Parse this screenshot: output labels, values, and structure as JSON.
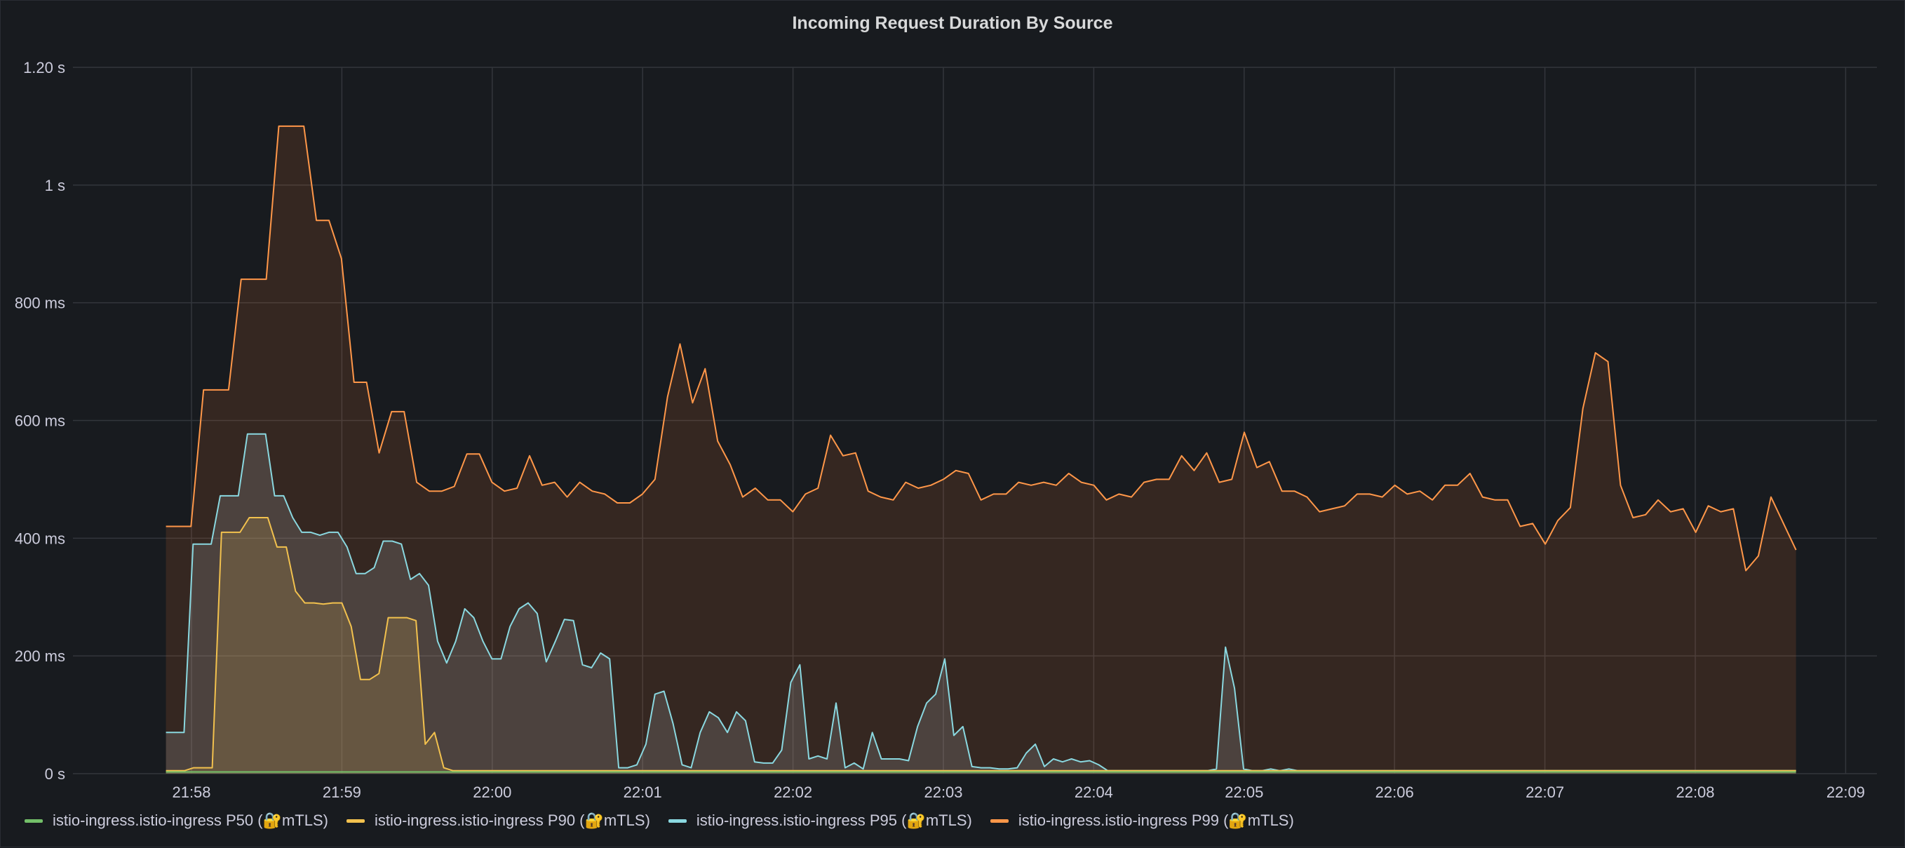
{
  "panel": {
    "title": "Incoming Request Duration By Source"
  },
  "colors": {
    "background": "#181b1f",
    "grid": "#33363c",
    "text": "#ccccdc"
  },
  "chart_data": {
    "type": "area",
    "title": "Incoming Request Duration By Source",
    "xlabel": "",
    "ylabel": "",
    "x_ticks": [
      "21:58",
      "21:59",
      "22:00",
      "22:01",
      "22:02",
      "22:03",
      "22:04",
      "22:05",
      "22:06",
      "22:07",
      "22:08",
      "22:09"
    ],
    "y_ticks": [
      {
        "value": 0,
        "label": "0 s"
      },
      {
        "value": 200,
        "label": "200 ms"
      },
      {
        "value": 400,
        "label": "400 ms"
      },
      {
        "value": 600,
        "label": "600 ms"
      },
      {
        "value": 800,
        "label": "800 ms"
      },
      {
        "value": 1000,
        "label": "1 s"
      },
      {
        "value": 1200,
        "label": "1.20 s"
      }
    ],
    "ylim": [
      0,
      1200
    ],
    "xlim_minutes": [
      -0.19,
      11.09
    ],
    "x_minutes_start": -0.17,
    "x_minutes_end": 10.67,
    "grid": true,
    "legend_position": "bottom-left",
    "series": [
      {
        "name": "istio-ingress.istio-ingress P50 (🔐mTLS)",
        "color": "#73bf69",
        "fill": "rgba(115,191,105,0.10)",
        "values": [
          3,
          3,
          3,
          3,
          3,
          3,
          3,
          3,
          3,
          3,
          3,
          3,
          3,
          3,
          3,
          3,
          3,
          3,
          3,
          3,
          3,
          3,
          3,
          3,
          3,
          3,
          3,
          3,
          3,
          3,
          3,
          3,
          3,
          3,
          3,
          3,
          3,
          3,
          3,
          3,
          3,
          3,
          3,
          3,
          3,
          3,
          3,
          3,
          3,
          3,
          3,
          3,
          3,
          3,
          3,
          3,
          3,
          3,
          3,
          3,
          3,
          3,
          3,
          3,
          3,
          3,
          3,
          3,
          3,
          3,
          3,
          3,
          3,
          3,
          3,
          3,
          3,
          3,
          3,
          3,
          3,
          3,
          3,
          3,
          3,
          3,
          3,
          3,
          3,
          3,
          3,
          3,
          3,
          3,
          3,
          3,
          3,
          3,
          3,
          3,
          3,
          3,
          3,
          3,
          3,
          3,
          3,
          3,
          3,
          3,
          3,
          3,
          3,
          3,
          3,
          3,
          3,
          3,
          3,
          3,
          3,
          3,
          3,
          3,
          3,
          3,
          3,
          3,
          3,
          3,
          3,
          3,
          3,
          3,
          3,
          3,
          3,
          3,
          3,
          3,
          3,
          3,
          3,
          3,
          3,
          3,
          3,
          3,
          3,
          3,
          3,
          3,
          3,
          3,
          3,
          3,
          3,
          3,
          3,
          3,
          3,
          3,
          3,
          3,
          3,
          3,
          3,
          3,
          3,
          3,
          3,
          3,
          3,
          3,
          3,
          3,
          3
        ]
      },
      {
        "name": "istio-ingress.istio-ingress P90 (🔐mTLS)",
        "color": "#f2c14e",
        "fill": "rgba(242,193,78,0.16)",
        "values": [
          5,
          5,
          5,
          10,
          10,
          10,
          410,
          410,
          410,
          435,
          435,
          435,
          385,
          385,
          310,
          290,
          290,
          288,
          290,
          290,
          250,
          160,
          160,
          170,
          265,
          265,
          265,
          260,
          50,
          70,
          10,
          5,
          5,
          5,
          5,
          5,
          5,
          5,
          5,
          5,
          5,
          5,
          5,
          5,
          5,
          5,
          5,
          5,
          5,
          5,
          5,
          5,
          5,
          5,
          5,
          5,
          5,
          5,
          5,
          5,
          5,
          5,
          5,
          5,
          5,
          5,
          5,
          5,
          5,
          5,
          5,
          5,
          5,
          5,
          5,
          5,
          5,
          5,
          5,
          5,
          5,
          5,
          5,
          5,
          5,
          5,
          5,
          5,
          5,
          5,
          5,
          5,
          5,
          5,
          5,
          5,
          5,
          5,
          5,
          5,
          5,
          5,
          5,
          5,
          5,
          5,
          5,
          5,
          5,
          5,
          5,
          5,
          5,
          5,
          5,
          5,
          5,
          5,
          5,
          5,
          5,
          5,
          5,
          5,
          5,
          5,
          5,
          5,
          5,
          5,
          5,
          5,
          5,
          5,
          5,
          5,
          5,
          5,
          5,
          5,
          5,
          5,
          5,
          5,
          5,
          5,
          5,
          5,
          5,
          5,
          5,
          5,
          5,
          5,
          5,
          5,
          5,
          5,
          5,
          5,
          5,
          5,
          5,
          5,
          5,
          5,
          5,
          5,
          5,
          5,
          5,
          5,
          5,
          5,
          5,
          5,
          5
        ]
      },
      {
        "name": "istio-ingress.istio-ingress P95 (🔐mTLS)",
        "color": "#8ad8e0",
        "fill": "rgba(160,165,170,0.22)",
        "values": [
          70,
          70,
          70,
          390,
          390,
          390,
          472,
          472,
          472,
          577,
          577,
          577,
          472,
          472,
          435,
          410,
          410,
          405,
          410,
          410,
          385,
          340,
          340,
          350,
          395,
          395,
          390,
          330,
          340,
          320,
          225,
          188,
          225,
          280,
          265,
          225,
          195,
          195,
          250,
          280,
          290,
          272,
          190,
          225,
          262,
          260,
          185,
          180,
          205,
          195,
          10,
          10,
          15,
          50,
          135,
          140,
          85,
          15,
          10,
          70,
          105,
          95,
          70,
          105,
          90,
          20,
          18,
          18,
          40,
          155,
          185,
          25,
          30,
          25,
          120,
          10,
          18,
          8,
          70,
          25,
          25,
          25,
          22,
          80,
          120,
          135,
          195,
          65,
          80,
          12,
          10,
          10,
          8,
          8,
          10,
          35,
          50,
          12,
          25,
          20,
          25,
          20,
          22,
          15,
          5,
          5,
          5,
          5,
          5,
          5,
          5,
          5,
          5,
          5,
          5,
          5,
          8,
          215,
          145,
          8,
          5,
          5,
          8,
          5,
          8,
          5,
          5,
          5,
          5,
          5,
          5,
          5,
          5,
          5,
          5,
          5,
          5,
          5,
          5,
          5,
          5,
          5,
          5,
          5,
          5,
          5,
          5,
          5,
          5,
          5,
          5,
          5,
          5,
          5,
          5,
          5,
          5,
          5,
          5,
          5,
          5,
          5,
          5,
          5,
          5,
          5,
          5,
          5,
          5,
          5,
          5,
          5,
          5,
          5,
          5,
          5,
          5,
          5,
          5,
          5,
          5
        ]
      },
      {
        "name": "istio-ingress.istio-ingress P99 (🔐mTLS)",
        "color": "#ff9749",
        "fill": "rgba(255,120,50,0.13)",
        "values": [
          420,
          420,
          420,
          652,
          652,
          652,
          840,
          840,
          840,
          1100,
          1100,
          1100,
          940,
          940,
          875,
          665,
          665,
          545,
          615,
          615,
          495,
          480,
          480,
          488,
          543,
          543,
          495,
          480,
          485,
          540,
          490,
          495,
          470,
          495,
          480,
          475,
          460,
          460,
          475,
          500,
          640,
          730,
          630,
          688,
          565,
          525,
          470,
          485,
          465,
          465,
          445,
          475,
          485,
          575,
          540,
          545,
          480,
          470,
          465,
          495,
          485,
          490,
          500,
          515,
          510,
          465,
          475,
          475,
          495,
          490,
          495,
          490,
          510,
          495,
          490,
          465,
          475,
          470,
          495,
          500,
          500,
          540,
          515,
          545,
          495,
          500,
          580,
          520,
          530,
          480,
          480,
          470,
          445,
          450,
          455,
          475,
          475,
          470,
          490,
          475,
          480,
          465,
          490,
          490,
          510,
          470,
          465,
          465,
          420,
          425,
          390,
          430,
          452,
          620,
          715,
          700,
          490,
          435,
          440,
          465,
          445,
          450,
          410,
          455,
          445,
          450,
          345,
          370,
          470,
          425,
          380
        ]
      }
    ]
  }
}
